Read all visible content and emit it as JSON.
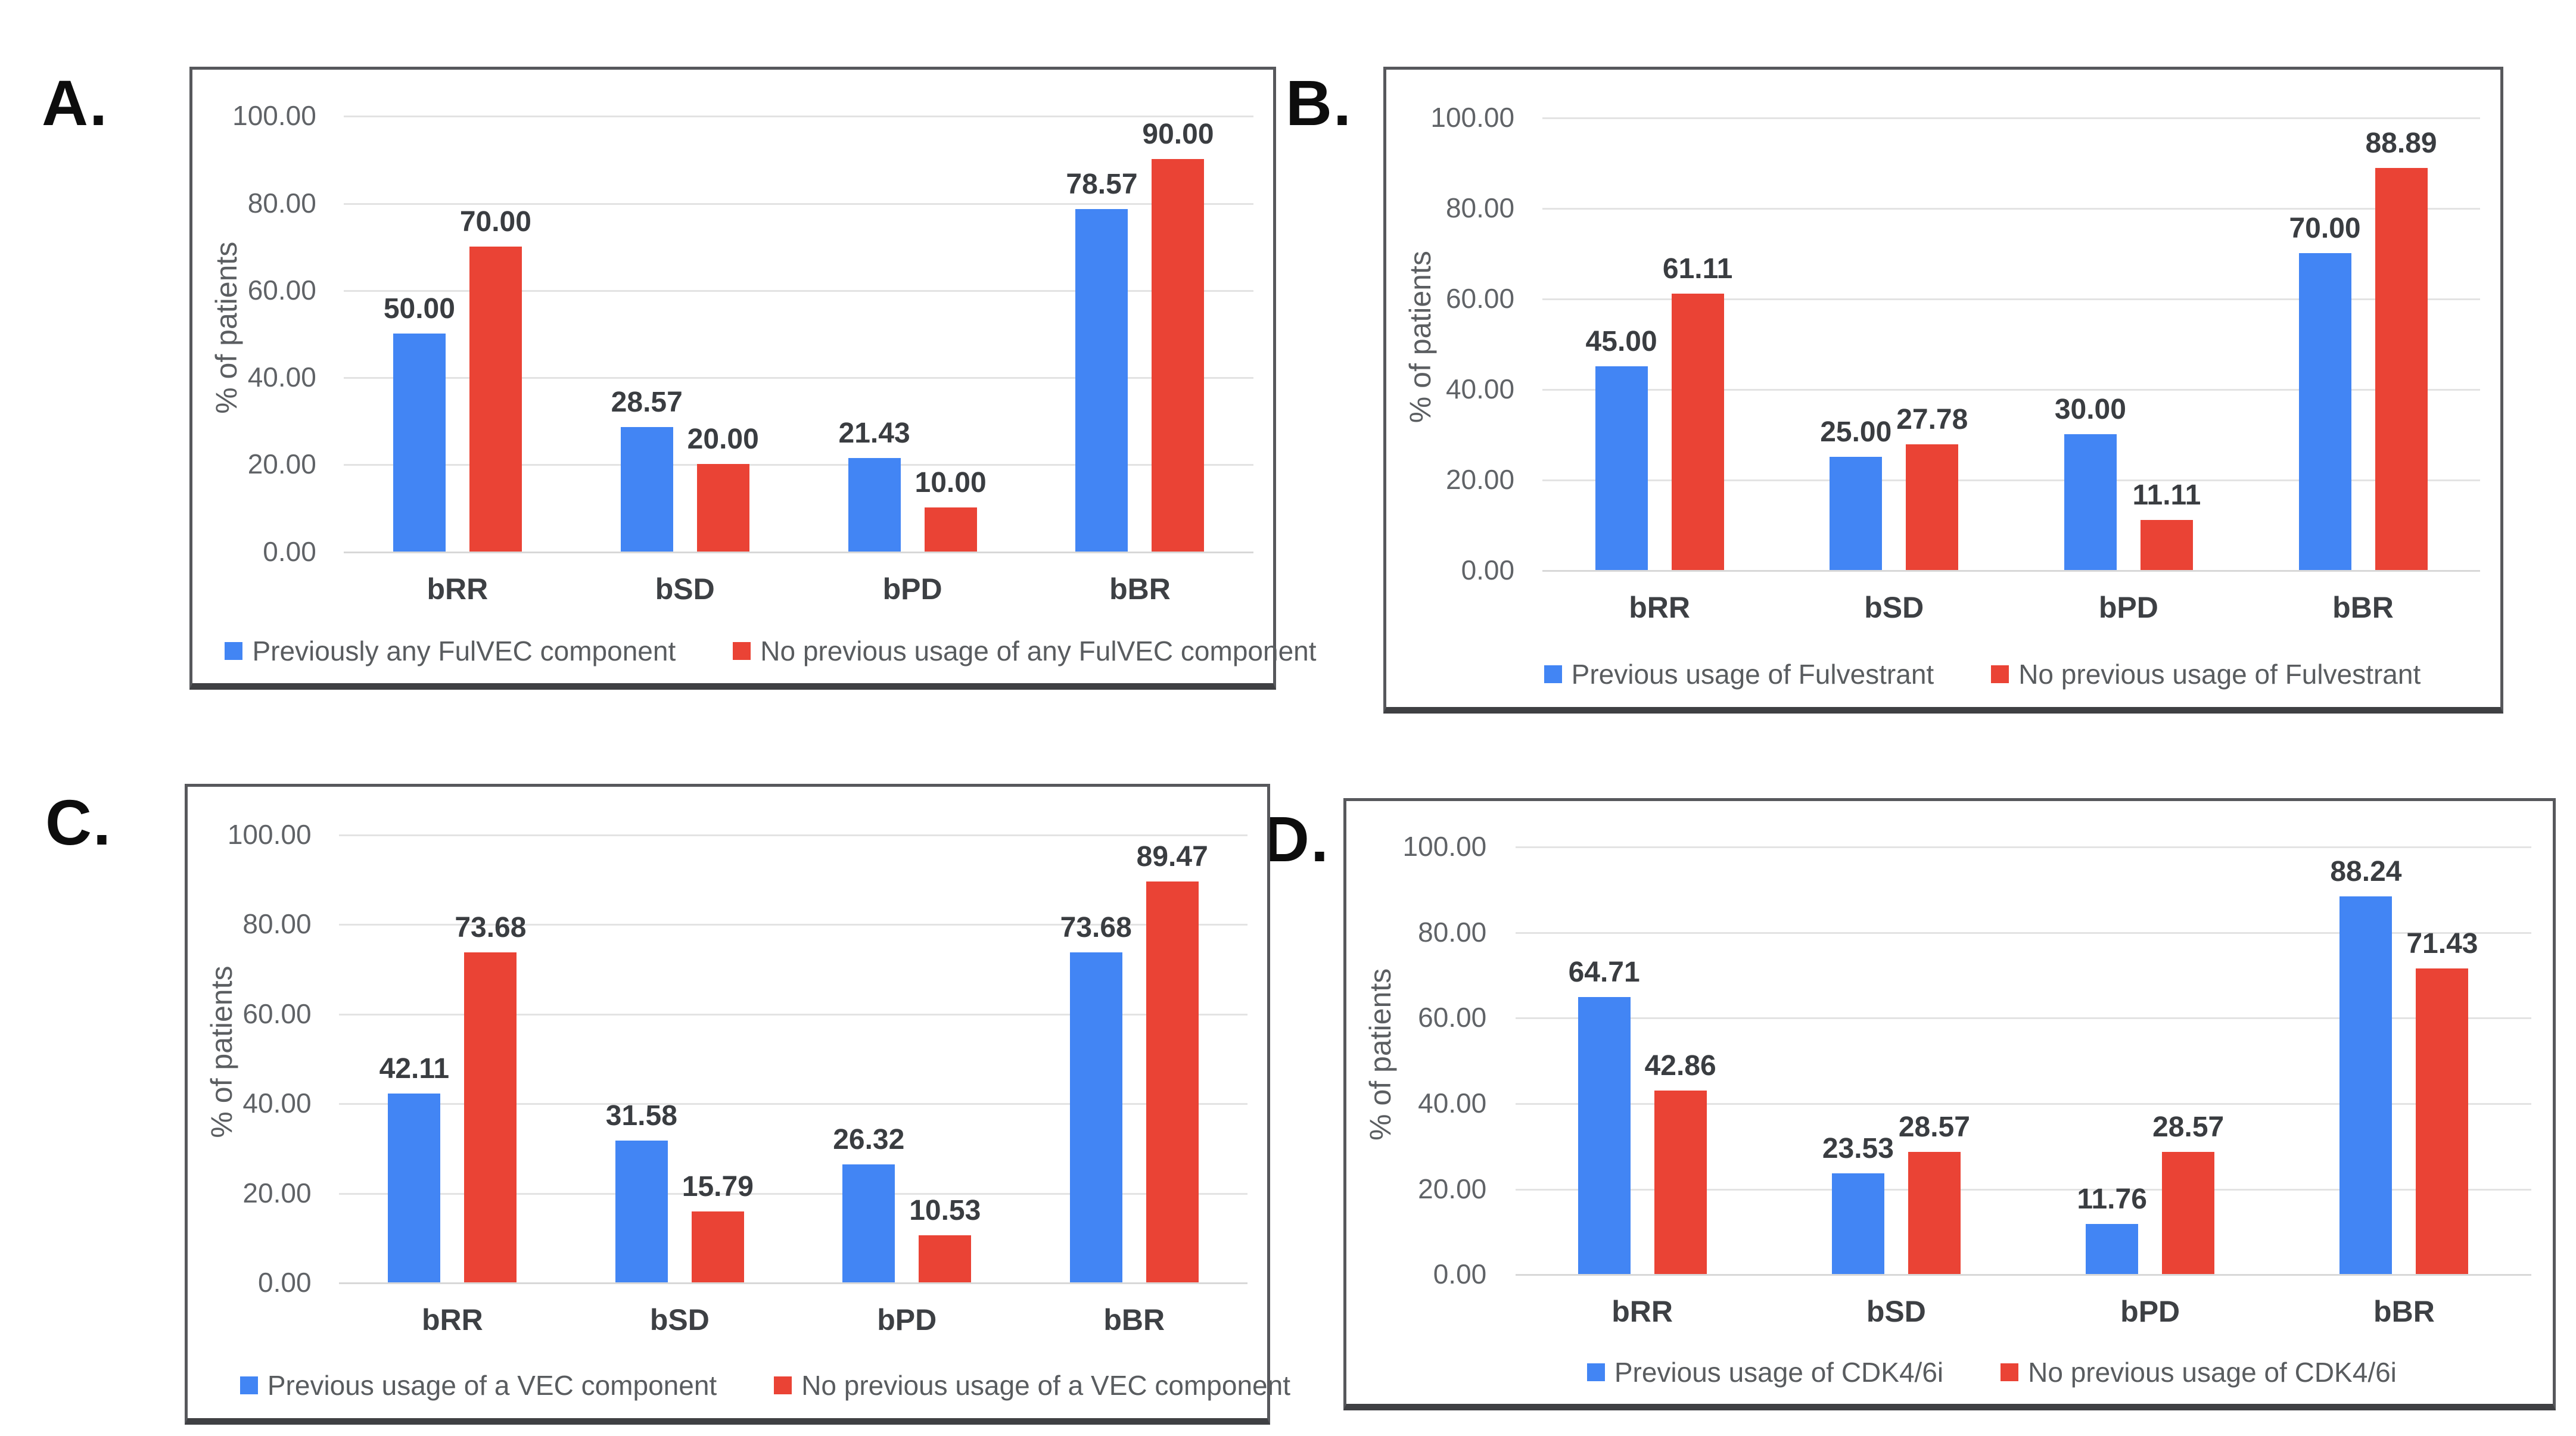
{
  "figure": {
    "y_axis_label": "% of patients",
    "y_ticks": [
      "100.00",
      "80.00",
      "60.00",
      "40.00",
      "20.00",
      "0.00"
    ],
    "ylim": [
      0,
      100
    ],
    "colors": {
      "series_blue": "#4285F4",
      "series_red": "#EA4335",
      "gridline": "#E3E3E3",
      "zero_line": "#D8D8D8",
      "panel_border": "#57585C",
      "data_label": "#3A3D41",
      "axis_text": "#606367"
    }
  },
  "chart_data": [
    {
      "panel": "A.",
      "type": "bar",
      "title": "",
      "xlabel": "",
      "ylabel": "% of patients",
      "ylim": [
        0,
        100
      ],
      "grid": true,
      "legend_position": "bottom",
      "categories": [
        "bRR",
        "bSD",
        "bPD",
        "bBR"
      ],
      "series": [
        {
          "name": "Previously any FulVEC component",
          "color": "#4285F4",
          "values": [
            50.0,
            28.57,
            21.43,
            78.57
          ]
        },
        {
          "name": "No previous usage of any FulVEC component",
          "color": "#EA4335",
          "values": [
            70.0,
            20.0,
            10.0,
            90.0
          ]
        }
      ]
    },
    {
      "panel": "B.",
      "type": "bar",
      "title": "",
      "xlabel": "",
      "ylabel": "% of patients",
      "ylim": [
        0,
        100
      ],
      "grid": true,
      "legend_position": "bottom",
      "categories": [
        "bRR",
        "bSD",
        "bPD",
        "bBR"
      ],
      "series": [
        {
          "name": "Previous usage of Fulvestrant",
          "color": "#4285F4",
          "values": [
            45.0,
            25.0,
            30.0,
            70.0
          ]
        },
        {
          "name": "No previous usage of Fulvestrant",
          "color": "#EA4335",
          "values": [
            61.11,
            27.78,
            11.11,
            88.89
          ]
        }
      ]
    },
    {
      "panel": "C.",
      "type": "bar",
      "title": "",
      "xlabel": "",
      "ylabel": "% of patients",
      "ylim": [
        0,
        100
      ],
      "grid": true,
      "legend_position": "bottom",
      "categories": [
        "bRR",
        "bSD",
        "bPD",
        "bBR"
      ],
      "series": [
        {
          "name": "Previous usage of a VEC component",
          "color": "#4285F4",
          "values": [
            42.11,
            31.58,
            26.32,
            73.68
          ]
        },
        {
          "name": "No previous usage of a VEC component",
          "color": "#EA4335",
          "values": [
            73.68,
            15.79,
            10.53,
            89.47
          ]
        }
      ]
    },
    {
      "panel": "D.",
      "type": "bar",
      "title": "",
      "xlabel": "",
      "ylabel": "% of patients",
      "ylim": [
        0,
        100
      ],
      "grid": true,
      "legend_position": "bottom",
      "categories": [
        "bRR",
        "bSD",
        "bPD",
        "bBR"
      ],
      "series": [
        {
          "name": "Previous usage of CDK4/6i",
          "color": "#4285F4",
          "values": [
            64.71,
            23.53,
            11.76,
            88.24
          ]
        },
        {
          "name": "No previous usage of CDK4/6i",
          "color": "#EA4335",
          "values": [
            42.86,
            28.57,
            28.57,
            71.43
          ]
        }
      ]
    }
  ]
}
